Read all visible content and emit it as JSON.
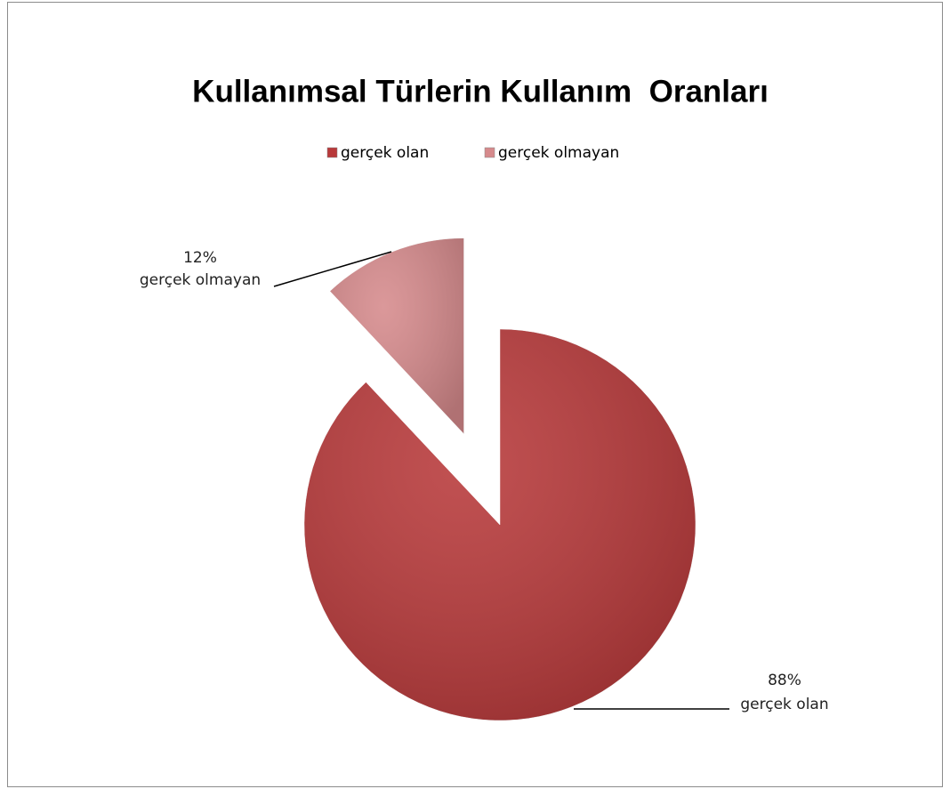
{
  "chart_data": {
    "type": "pie",
    "title": "Kullanımsal Türlerin Kullanım  Oranları",
    "categories": [
      "gerçek olan",
      "gerçek olmayan"
    ],
    "values": [
      88,
      12
    ],
    "value_labels": [
      "88%",
      "12%"
    ],
    "colors": [
      "#b8393a",
      "#d68a8c"
    ],
    "legend": "top"
  }
}
